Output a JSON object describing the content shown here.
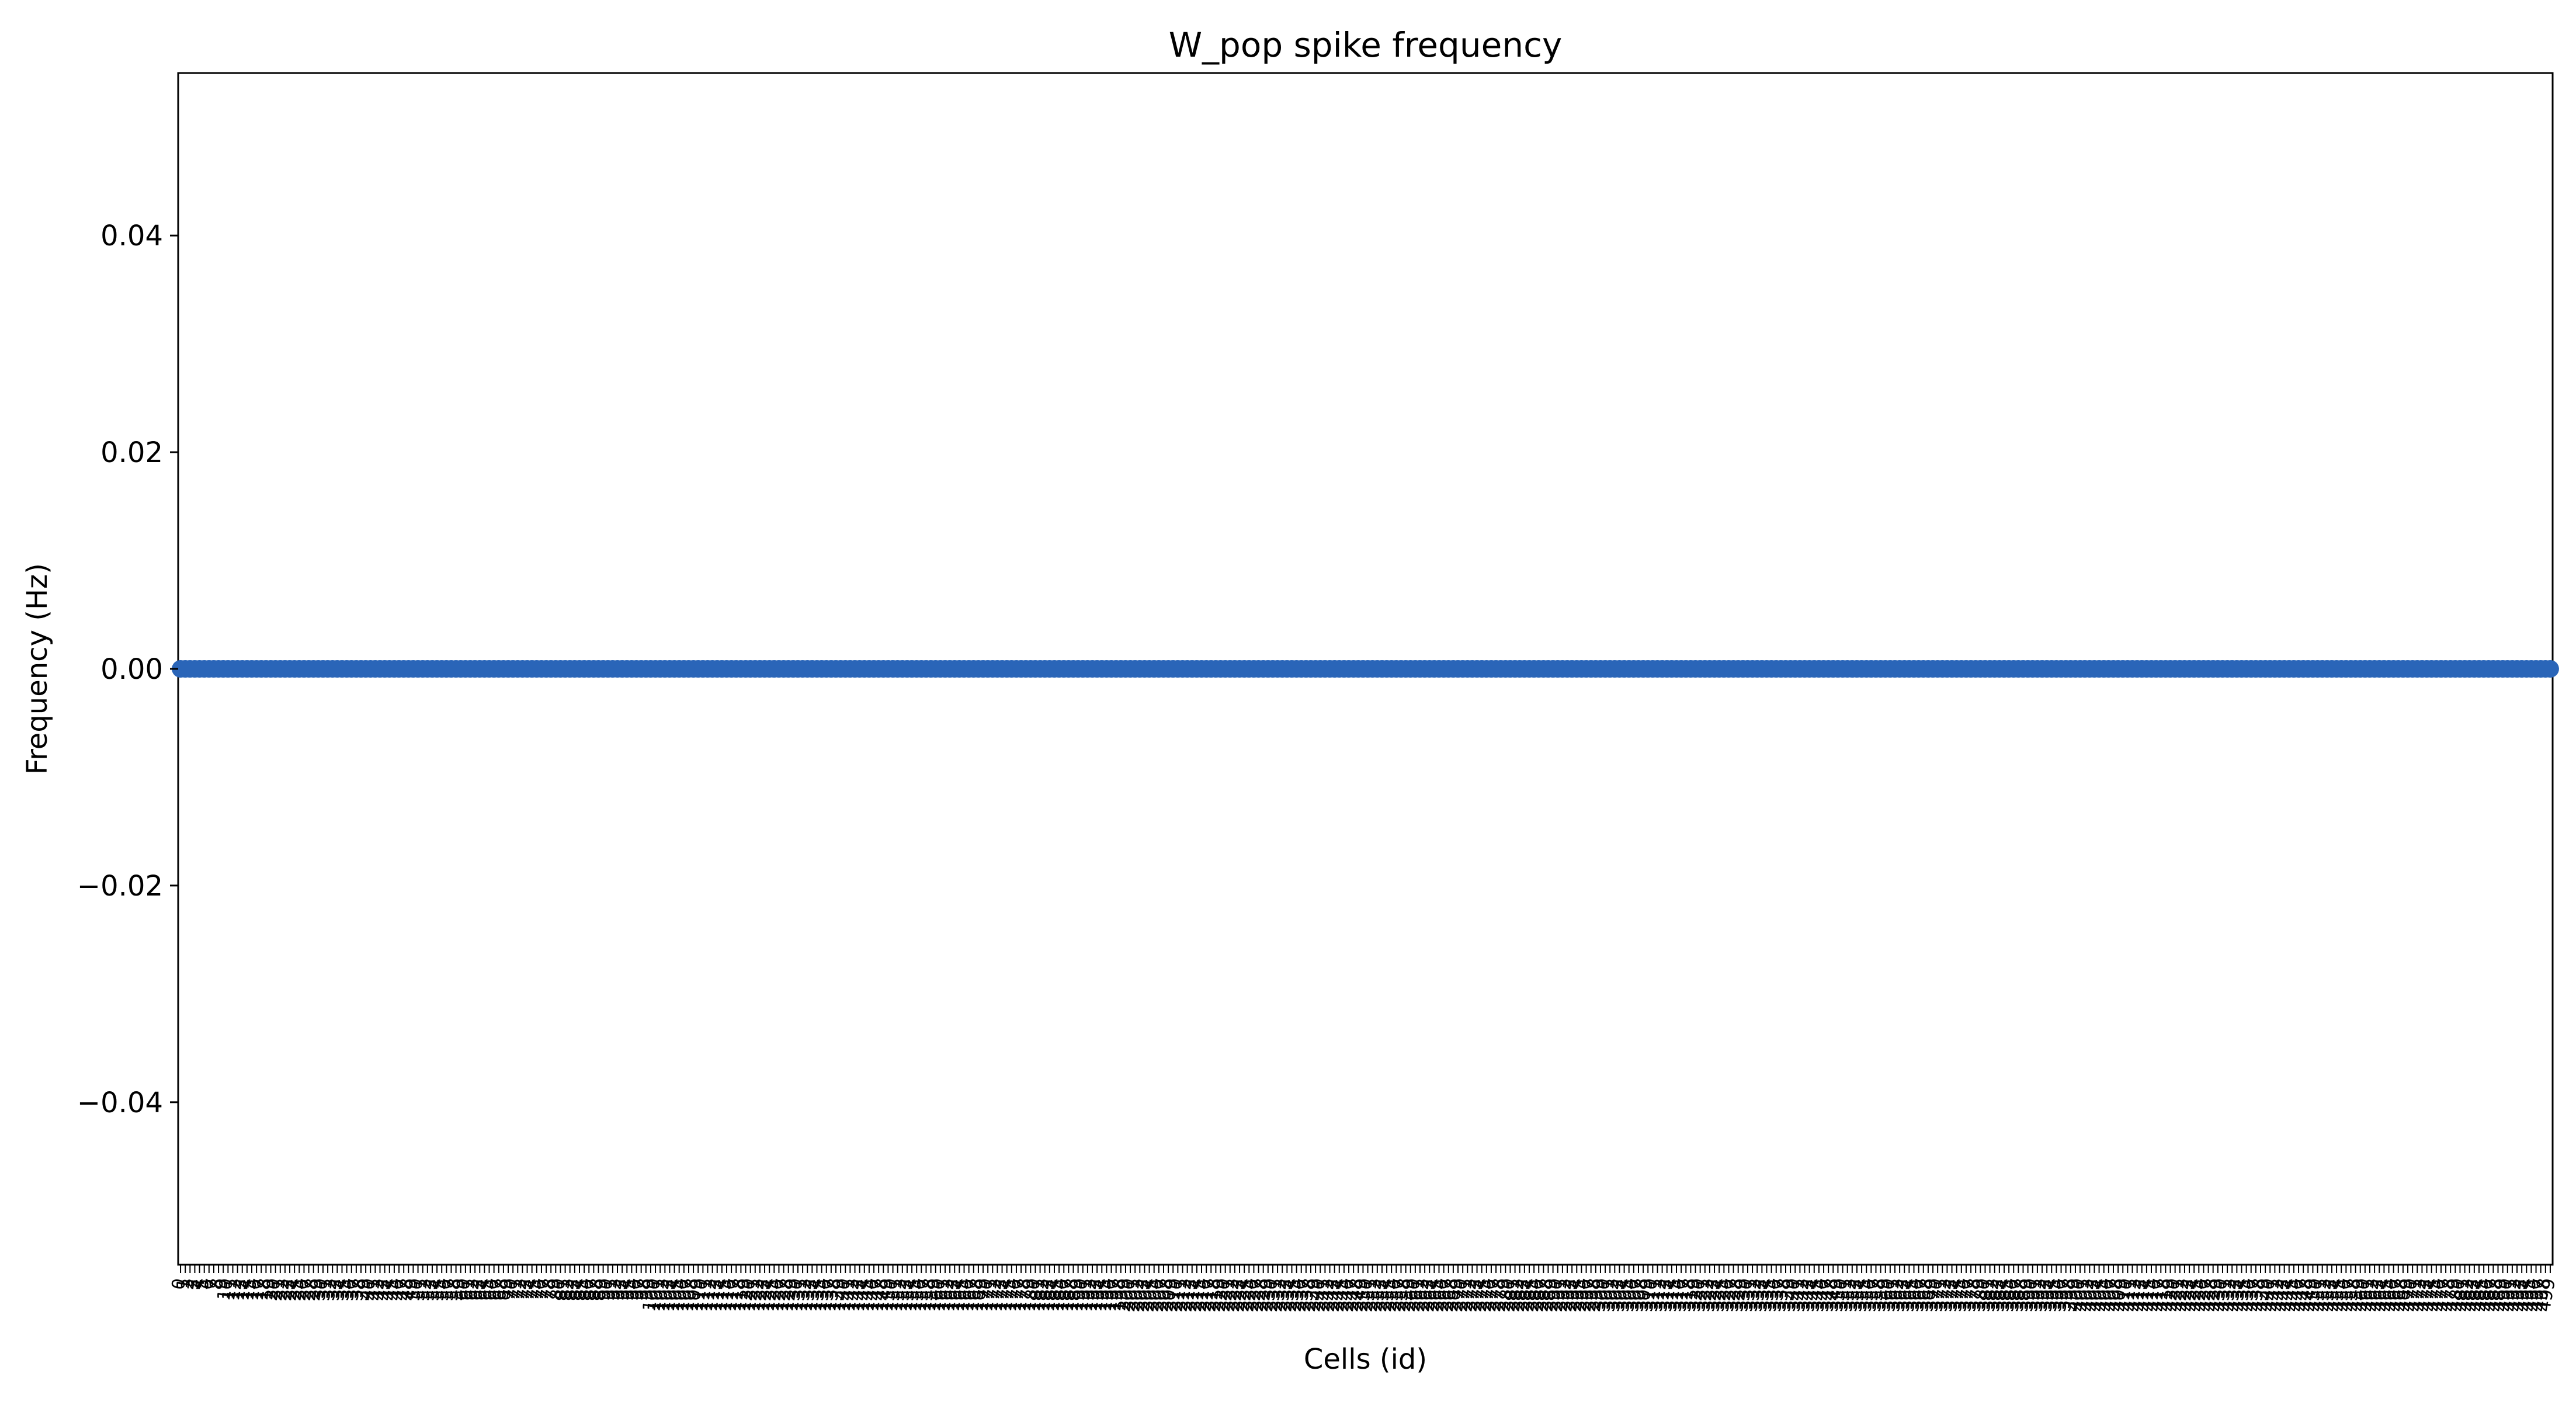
{
  "chart_data": {
    "type": "scatter",
    "title": "W_pop spike frequency",
    "xlabel": "Cells (id)",
    "ylabel": "Frequency (Hz)",
    "ylim": [
      -0.055,
      0.055
    ],
    "yticks": [
      -0.04,
      -0.02,
      0.0,
      0.02,
      0.04
    ],
    "ytick_labels": [
      "−0.04",
      "−0.02",
      "0.00",
      "0.02",
      "0.04"
    ],
    "x_categories_from": 0,
    "x_categories_to": 499,
    "series_color": "#2a65b8",
    "y_value_all_points": 0,
    "grid": false,
    "legend": "none"
  }
}
